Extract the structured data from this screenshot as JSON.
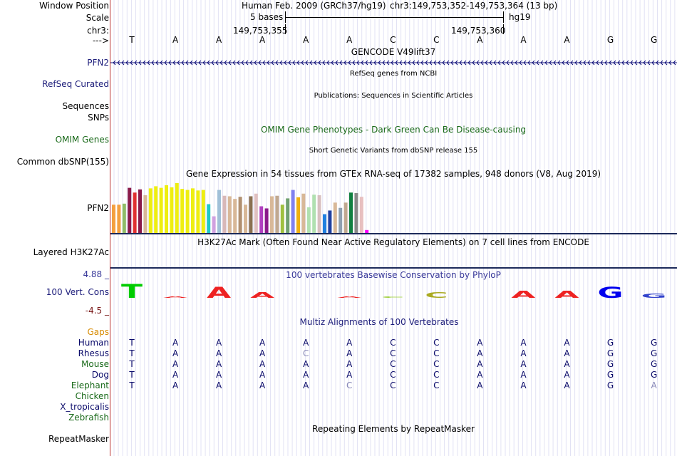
{
  "header": {
    "window_position_label": "Window Position",
    "scale_label": "Scale",
    "chrom_label": "chr3:",
    "strand_label": "--->",
    "assembly": "Human Feb. 2009 (GRCh37/hg19)",
    "position": "chr3:149,753,352-149,753,364 (13 bp)",
    "scale_text": "5 bases",
    "db": "hg19",
    "coord_left": "149,753,355",
    "coord_right": "149,753,360"
  },
  "bases": [
    "T",
    "A",
    "A",
    "A",
    "A",
    "A",
    "C",
    "C",
    "A",
    "A",
    "A",
    "G",
    "G"
  ],
  "tracks": {
    "gencode": {
      "title": "GENCODE V49lift37",
      "label": "PFN2"
    },
    "refseq": {
      "title": "RefSeq genes from NCBI",
      "label": "RefSeq Curated"
    },
    "publications": {
      "title": "Publications: Sequences in Scientific Articles",
      "label1": "Sequences",
      "label2": "SNPs"
    },
    "omim": {
      "title": "OMIM Gene Phenotypes - Dark Green Can Be Disease-causing",
      "label": "OMIM Genes"
    },
    "dbsnp": {
      "title": "Short Genetic Variants from dbSNP release 155",
      "label": "Common dbSNP(155)"
    },
    "gtex": {
      "title": "Gene Expression in 54 tissues from GTEx RNA-seq of 17382 samples, 948 donors (V8, Aug 2019)",
      "label": "PFN2"
    },
    "h3k27ac": {
      "title": "H3K27Ac Mark (Often Found Near Active Regulatory Elements) on 7 cell lines from ENCODE",
      "label": "Layered H3K27Ac"
    },
    "phylop": {
      "title": "100 vertebrates Basewise Conservation by PhyloP",
      "label": "100 Vert. Cons",
      "ymax": "4.88 _",
      "ymin": "-4.5 _"
    },
    "multiz": {
      "title": "Multiz Alignments of 100 Vertebrates",
      "gaps_label": "Gaps"
    },
    "repeatmasker": {
      "title": "Repeating Elements by RepeatMasker",
      "label": "RepeatMasker"
    }
  },
  "alignment": [
    {
      "species": "Human",
      "color": "#0a0a6a",
      "seq": [
        "T",
        "A",
        "A",
        "A",
        "A",
        "A",
        "C",
        "C",
        "A",
        "A",
        "A",
        "G",
        "G"
      ],
      "faint": []
    },
    {
      "species": "Rhesus",
      "color": "#0a0a6a",
      "seq": [
        "T",
        "A",
        "A",
        "A",
        "C",
        "A",
        "C",
        "C",
        "A",
        "A",
        "A",
        "G",
        "G"
      ],
      "faint": [
        4
      ]
    },
    {
      "species": "Mouse",
      "color": "#1a6a1a",
      "seq": [
        "T",
        "A",
        "A",
        "A",
        "A",
        "A",
        "C",
        "C",
        "A",
        "A",
        "A",
        "G",
        "G"
      ],
      "faint": []
    },
    {
      "species": "Dog",
      "color": "#0a0a6a",
      "seq": [
        "T",
        "A",
        "A",
        "A",
        "A",
        "A",
        "C",
        "C",
        "A",
        "A",
        "A",
        "G",
        "G"
      ],
      "faint": []
    },
    {
      "species": "Elephant",
      "color": "#1a6a1a",
      "seq": [
        "T",
        "A",
        "A",
        "A",
        "A",
        "C",
        "C",
        "C",
        "A",
        "A",
        "A",
        "G",
        "A"
      ],
      "faint": [
        5,
        12
      ]
    },
    {
      "species": "Chicken",
      "color": "#1a6a1a",
      "seq": [],
      "faint": []
    },
    {
      "species": "X_tropicalis",
      "color": "#0a0a6a",
      "seq": [],
      "faint": []
    },
    {
      "species": "Zebrafish",
      "color": "#1a6a1a",
      "seq": [],
      "faint": []
    }
  ],
  "colors": {
    "track_label_blue": "#1c1c7a",
    "green": "#1a6a1a",
    "omim_green": "#1a6a1a",
    "gaps_orange": "#d68a00",
    "phylop_title": "#3a3a9a",
    "phylop_min": "#7a1a1a",
    "separator": "#1c2a5a"
  },
  "gtex_bars": [
    {
      "v": 0.55,
      "c": "#f4a040"
    },
    {
      "v": 0.55,
      "c": "#f4a040"
    },
    {
      "v": 0.57,
      "c": "#8fbc68"
    },
    {
      "v": 0.87,
      "c": "#8a1a4a"
    },
    {
      "v": 0.78,
      "c": "#e03030"
    },
    {
      "v": 0.84,
      "c": "#8a1a4a"
    },
    {
      "v": 0.73,
      "c": "#d8b898"
    },
    {
      "v": 0.86,
      "c": "#eeee10"
    },
    {
      "v": 0.9,
      "c": "#eeee10"
    },
    {
      "v": 0.87,
      "c": "#eeee10"
    },
    {
      "v": 0.92,
      "c": "#eeee10"
    },
    {
      "v": 0.88,
      "c": "#eeee10"
    },
    {
      "v": 0.96,
      "c": "#eeee10"
    },
    {
      "v": 0.85,
      "c": "#eeee10"
    },
    {
      "v": 0.83,
      "c": "#eeee10"
    },
    {
      "v": 0.86,
      "c": "#eeee10"
    },
    {
      "v": 0.82,
      "c": "#eeee10"
    },
    {
      "v": 0.83,
      "c": "#eeee10"
    },
    {
      "v": 0.56,
      "c": "#20c8c8"
    },
    {
      "v": 0.33,
      "c": "#d0a0e0"
    },
    {
      "v": 0.83,
      "c": "#a0c0d8"
    },
    {
      "v": 0.72,
      "c": "#d8b8b8"
    },
    {
      "v": 0.71,
      "c": "#d8b898"
    },
    {
      "v": 0.66,
      "c": "#d8b898"
    },
    {
      "v": 0.7,
      "c": "#b08f70"
    },
    {
      "v": 0.55,
      "c": "#d8b898"
    },
    {
      "v": 0.71,
      "c": "#8a7050"
    },
    {
      "v": 0.76,
      "c": "#e0c0c0"
    },
    {
      "v": 0.52,
      "c": "#b040c0"
    },
    {
      "v": 0.48,
      "c": "#8a1a8a"
    },
    {
      "v": 0.71,
      "c": "#d8b898"
    },
    {
      "v": 0.72,
      "c": "#c0a890"
    },
    {
      "v": 0.55,
      "c": "#a0c040"
    },
    {
      "v": 0.67,
      "c": "#70a070"
    },
    {
      "v": 0.83,
      "c": "#8080f0"
    },
    {
      "v": 0.69,
      "c": "#f0b010"
    },
    {
      "v": 0.76,
      "c": "#d8b898"
    },
    {
      "v": 0.5,
      "c": "#b0e0b0"
    },
    {
      "v": 0.74,
      "c": "#b0e0b0"
    },
    {
      "v": 0.73,
      "c": "#d8c0c0"
    },
    {
      "v": 0.37,
      "c": "#2080e0"
    },
    {
      "v": 0.44,
      "c": "#2040a0"
    },
    {
      "v": 0.59,
      "c": "#d8b898"
    },
    {
      "v": 0.49,
      "c": "#8fa0b0"
    },
    {
      "v": 0.59,
      "c": "#c0a890"
    },
    {
      "v": 0.78,
      "c": "#108040"
    },
    {
      "v": 0.77,
      "c": "#888888"
    },
    {
      "v": 0.7,
      "c": "#e8c0c0"
    },
    {
      "v": 0.07,
      "c": "#ff00ff"
    }
  ],
  "phylop_logo": [
    {
      "letter": "T",
      "color": "#00cc00",
      "h": 20
    },
    {
      "letter": "A",
      "color": "#ee2222",
      "h": 2
    },
    {
      "letter": "A",
      "color": "#ee2222",
      "h": 16
    },
    {
      "letter": "A",
      "color": "#ee2222",
      "h": 8
    },
    {
      "letter": "A",
      "color": "#ee2222",
      "h": 0
    },
    {
      "letter": "A",
      "color": "#ee2222",
      "h": 2
    },
    {
      "letter": "C",
      "color": "#9acd32",
      "h": 2
    },
    {
      "letter": "C",
      "color": "#aaaa22",
      "h": 8
    },
    {
      "letter": "A",
      "color": "#ee2222",
      "h": 0
    },
    {
      "letter": "A",
      "color": "#ee2222",
      "h": 10
    },
    {
      "letter": "A",
      "color": "#ee2222",
      "h": 10
    },
    {
      "letter": "G",
      "color": "#0000ee",
      "h": 16
    },
    {
      "letter": "G",
      "color": "#3344cc",
      "h": 6
    }
  ]
}
